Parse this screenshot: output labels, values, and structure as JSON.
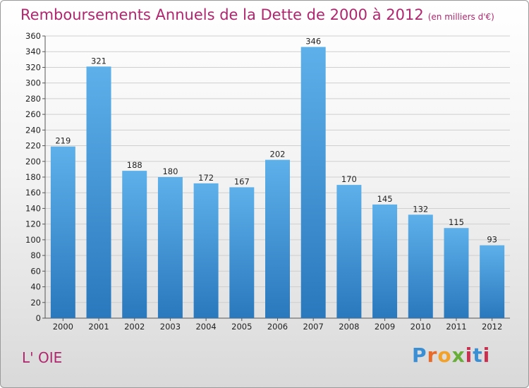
{
  "title": "Remboursements Annuels de la Dette de 2000 à 2012",
  "unit": "(en milliers d'€)",
  "commune": "L' OIE",
  "logo": {
    "p": "P",
    "r": "r",
    "o": "o",
    "x": "x",
    "i": "i",
    "t": "t",
    "i2": "i"
  },
  "chart_data": {
    "type": "bar",
    "title": "Remboursements Annuels de la Dette de 2000 à 2012",
    "categories": [
      "2000",
      "2001",
      "2002",
      "2003",
      "2004",
      "2005",
      "2006",
      "2007",
      "2008",
      "2009",
      "2010",
      "2011",
      "2012"
    ],
    "values": [
      219,
      321,
      188,
      180,
      172,
      167,
      202,
      346,
      170,
      145,
      132,
      115,
      93
    ],
    "ylim": [
      0,
      360
    ],
    "ytick_step": 20,
    "grid": true,
    "bar_color": "#3a8fd4"
  }
}
